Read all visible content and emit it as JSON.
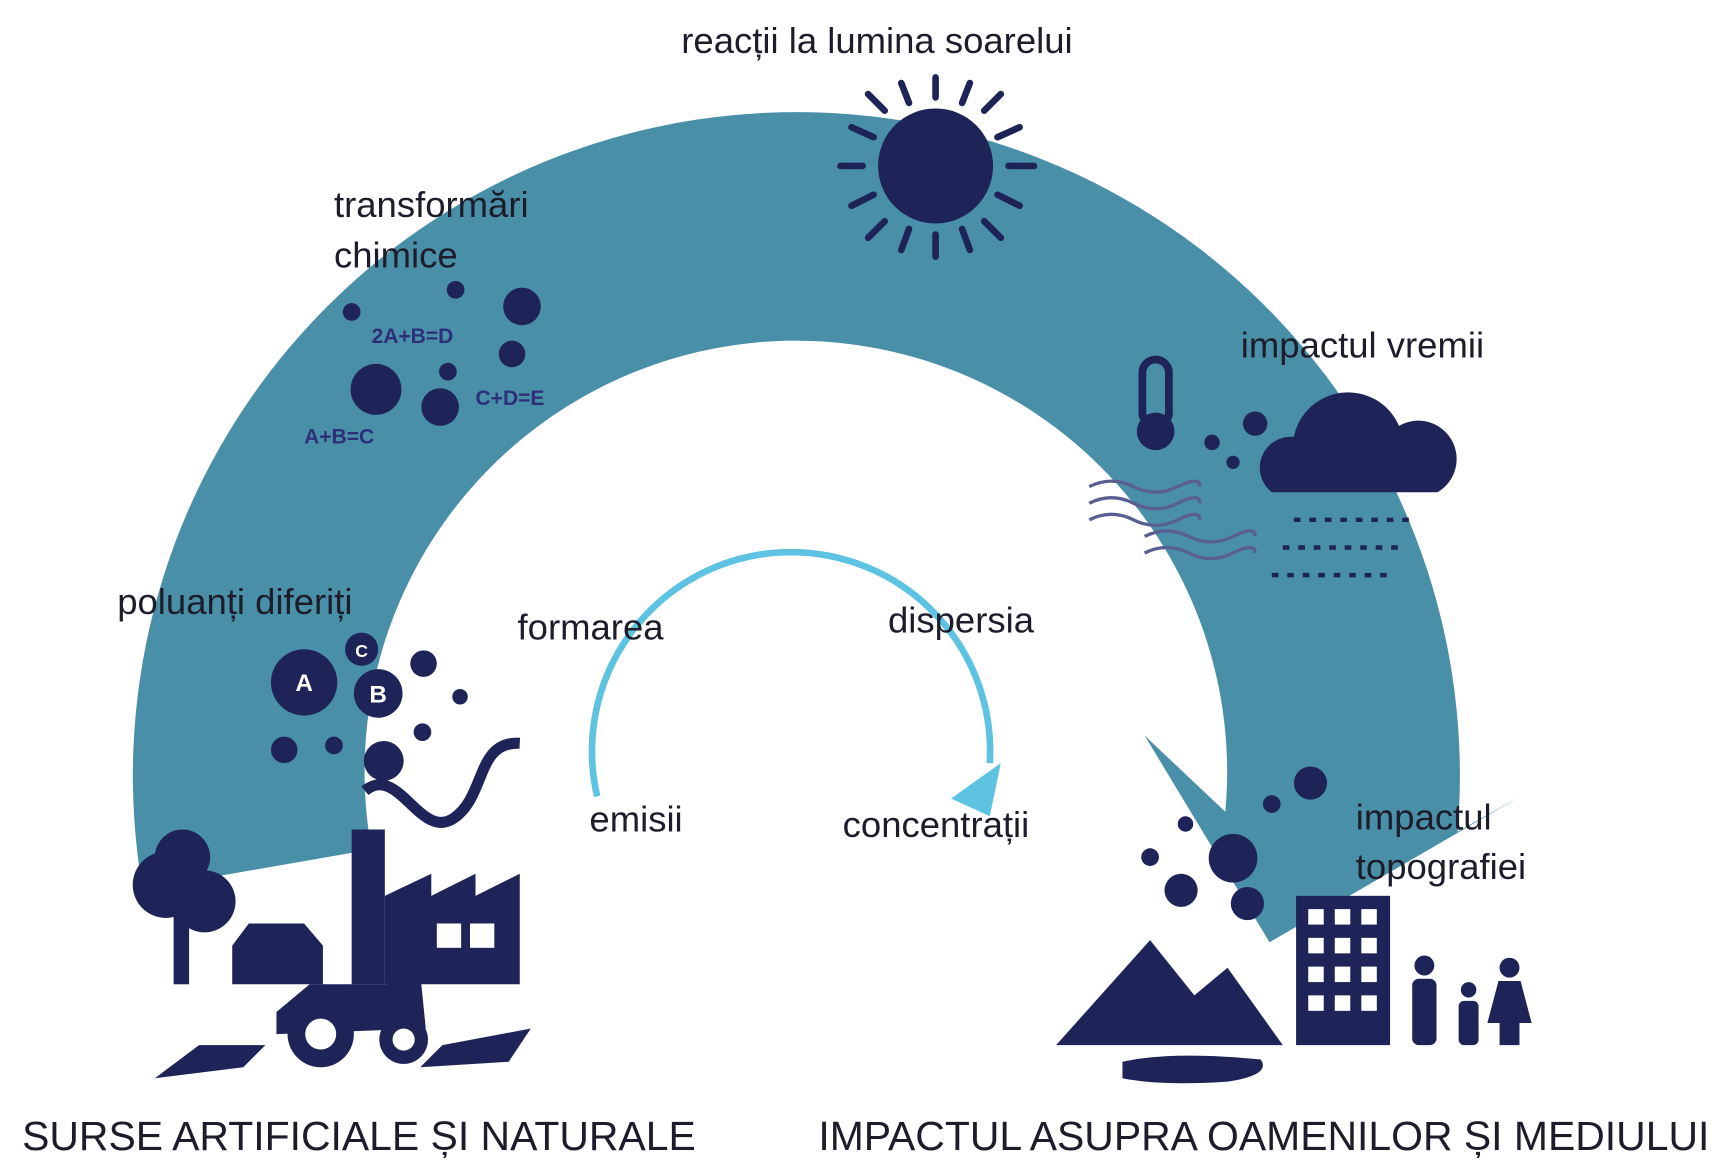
{
  "labels": {
    "sunlight": "reacții la lumina soarelui",
    "chemical_1": "transformări",
    "chemical_2": "chimice",
    "weather": "impactul vremii",
    "pollutants": "poluanți diferiți",
    "formation": "formarea",
    "dispersion": "dispersia",
    "emissions": "emisii",
    "concentrations": "concentrații",
    "topography_1": "impactul",
    "topography_2": "topografiei",
    "sources": "SURSE ARTIFICIALE ȘI NATURALE",
    "impact": "IMPACTUL ASUPRA OAMENILOR ȘI MEDIULUI"
  },
  "equations": [
    "2A+B=D",
    "C+D=E",
    "A+B=C"
  ],
  "pollutant_letters": [
    "A",
    "B",
    "C"
  ]
}
